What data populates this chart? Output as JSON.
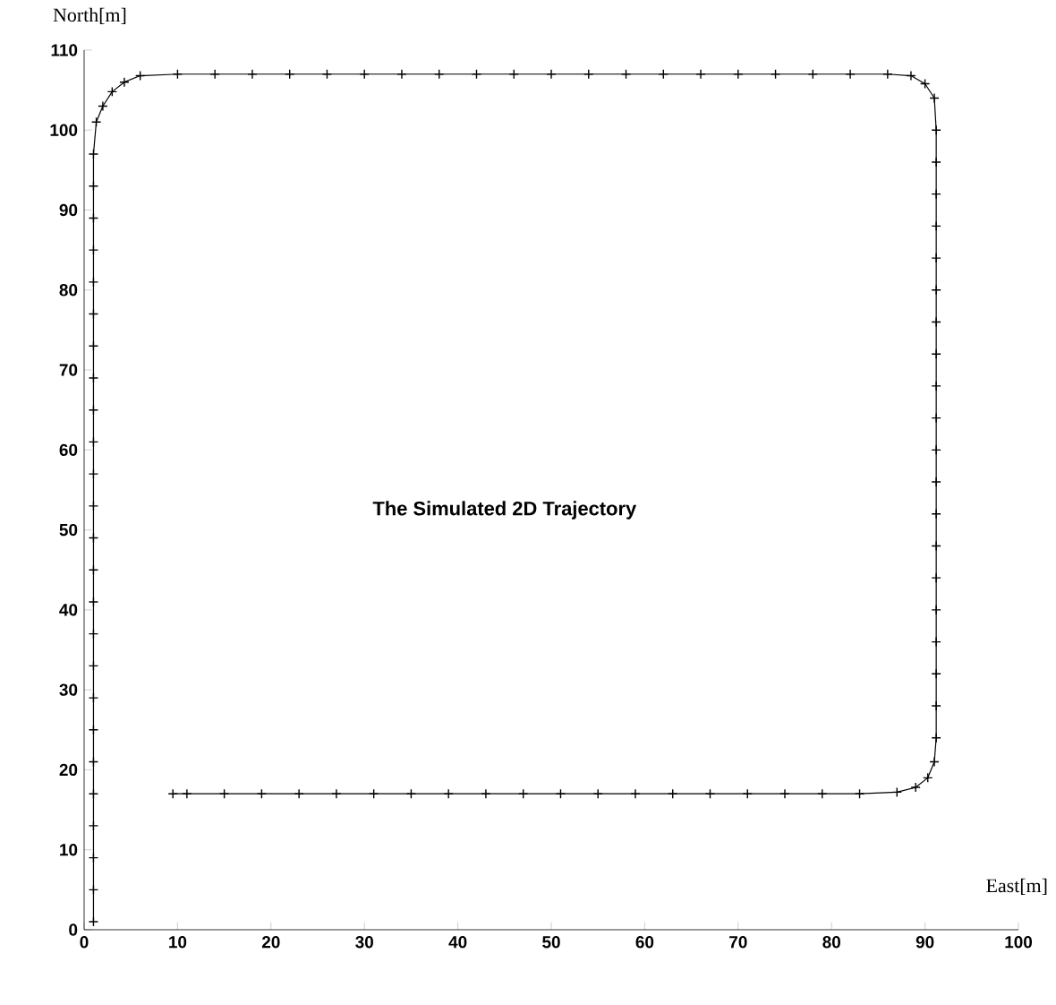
{
  "chart_data": {
    "type": "line",
    "xlabel": "East[m]",
    "ylabel": "North[m]",
    "annotations": [
      "The Simulated 2D Trajectory"
    ],
    "xlim": [
      0,
      100
    ],
    "ylim": [
      0,
      110
    ],
    "xticks": [
      0,
      10,
      20,
      30,
      40,
      50,
      60,
      70,
      80,
      90,
      100
    ],
    "yticks": [
      0,
      10,
      20,
      30,
      40,
      50,
      60,
      70,
      80,
      90,
      100,
      110
    ],
    "marker": "cross",
    "line_style": "solid",
    "series": [
      {
        "color": "#000000",
        "x": [
          1,
          1,
          1,
          1,
          1,
          1,
          1,
          1,
          1,
          1,
          1,
          1,
          1,
          1,
          1,
          1,
          1,
          1,
          1,
          1,
          1,
          1,
          1,
          1,
          1,
          1.3,
          2,
          3,
          4.3,
          6,
          10,
          14,
          18,
          22,
          26,
          30,
          34,
          38,
          42,
          46,
          50,
          54,
          58,
          62,
          66,
          70,
          74,
          78,
          82,
          86,
          88.5,
          90,
          91,
          91.2,
          91.2,
          91.2,
          91.2,
          91.2,
          91.2,
          91.2,
          91.2,
          91.2,
          91.2,
          91.2,
          91.2,
          91.2,
          91.2,
          91.2,
          91.2,
          91.2,
          91.2,
          91.2,
          91.2,
          91,
          90.3,
          89,
          87,
          83,
          79,
          75,
          71,
          67,
          63,
          59,
          55,
          51,
          47,
          43,
          39,
          35,
          31,
          27,
          23,
          19,
          15,
          11,
          9.5
        ],
        "values": [
          1,
          5,
          9,
          13,
          17,
          21,
          25,
          29,
          33,
          37,
          41,
          45,
          49,
          53,
          57,
          61,
          65,
          69,
          73,
          77,
          81,
          85,
          89,
          93,
          97,
          101,
          103,
          104.8,
          106,
          106.8,
          107,
          107,
          107,
          107,
          107,
          107,
          107,
          107,
          107,
          107,
          107,
          107,
          107,
          107,
          107,
          107,
          107,
          107,
          107,
          107,
          106.8,
          105.8,
          104,
          100,
          96,
          92,
          88,
          84,
          80,
          76,
          72,
          68,
          64,
          60,
          56,
          52,
          48,
          44,
          40,
          36,
          32,
          28,
          24,
          21,
          19,
          17.8,
          17.2,
          17,
          17,
          17,
          17,
          17,
          17,
          17,
          17,
          17,
          17,
          17,
          17,
          17,
          17,
          17,
          17,
          17,
          17,
          17,
          17
        ]
      }
    ]
  }
}
